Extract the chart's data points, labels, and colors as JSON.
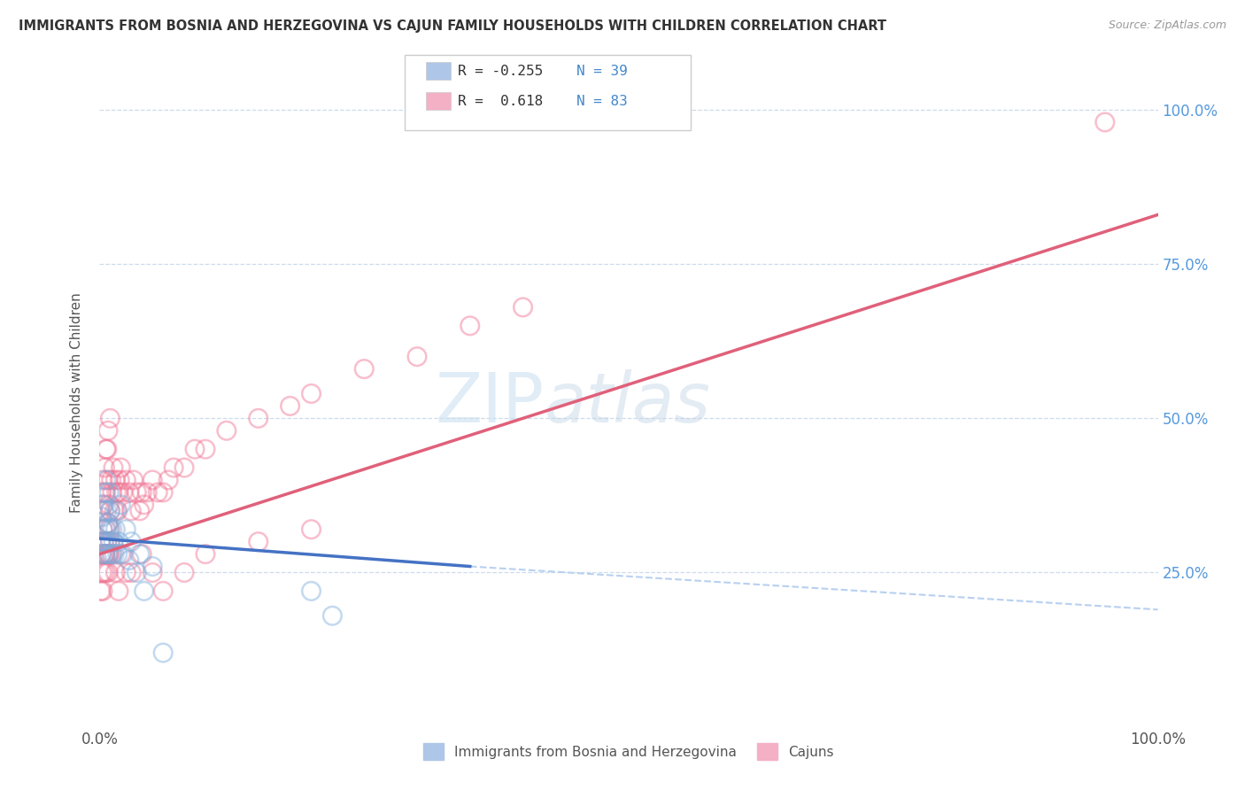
{
  "title": "IMMIGRANTS FROM BOSNIA AND HERZEGOVINA VS CAJUN FAMILY HOUSEHOLDS WITH CHILDREN CORRELATION CHART",
  "source": "Source: ZipAtlas.com",
  "ylabel": "Family Households with Children",
  "bosnia_color": "#7aacdc",
  "cajun_color": "#f07090",
  "bosnia_line_color": "#4472c4",
  "cajun_line_color": "#e0607a",
  "dashed_line_color": "#b8d0f0",
  "dashed_cajun_line_color": "#f0b8c8",
  "background_color": "#ffffff",
  "watermark_zip": "ZIP",
  "watermark_atlas": "atlas",
  "x_min": 0.0,
  "x_max": 1.0,
  "y_min": 0.0,
  "y_max": 1.05,
  "legend_entries": [
    {
      "label_r": "R = -0.255",
      "label_n": "N = 39",
      "color": "#aec6e8"
    },
    {
      "label_r": "R =  0.618",
      "label_n": "N = 83",
      "color": "#f4b0c4"
    }
  ],
  "bottom_legend": [
    {
      "label": "Immigrants from Bosnia and Herzegovina",
      "color": "#aec6e8"
    },
    {
      "label": "Cajuns",
      "color": "#f4b0c4"
    }
  ],
  "bosnia_scatter_x": [
    0.001,
    0.002,
    0.002,
    0.003,
    0.003,
    0.004,
    0.004,
    0.005,
    0.005,
    0.006,
    0.006,
    0.007,
    0.007,
    0.008,
    0.008,
    0.009,
    0.009,
    0.01,
    0.01,
    0.011,
    0.012,
    0.013,
    0.014,
    0.015,
    0.016,
    0.017,
    0.018,
    0.02,
    0.022,
    0.025,
    0.028,
    0.03,
    0.035,
    0.038,
    0.042,
    0.05,
    0.06,
    0.2,
    0.22
  ],
  "bosnia_scatter_y": [
    0.3,
    0.34,
    0.28,
    0.36,
    0.32,
    0.35,
    0.3,
    0.38,
    0.28,
    0.32,
    0.4,
    0.3,
    0.35,
    0.33,
    0.28,
    0.32,
    0.38,
    0.3,
    0.35,
    0.28,
    0.32,
    0.3,
    0.28,
    0.32,
    0.35,
    0.28,
    0.3,
    0.36,
    0.28,
    0.32,
    0.27,
    0.3,
    0.25,
    0.28,
    0.22,
    0.26,
    0.12,
    0.22,
    0.18
  ],
  "cajun_scatter_x": [
    0.001,
    0.001,
    0.002,
    0.002,
    0.003,
    0.003,
    0.004,
    0.004,
    0.005,
    0.005,
    0.006,
    0.006,
    0.007,
    0.007,
    0.008,
    0.008,
    0.009,
    0.009,
    0.01,
    0.01,
    0.011,
    0.012,
    0.013,
    0.014,
    0.015,
    0.016,
    0.017,
    0.018,
    0.019,
    0.02,
    0.022,
    0.025,
    0.028,
    0.03,
    0.032,
    0.035,
    0.038,
    0.04,
    0.042,
    0.045,
    0.05,
    0.055,
    0.06,
    0.065,
    0.07,
    0.08,
    0.09,
    0.1,
    0.12,
    0.15,
    0.18,
    0.2,
    0.25,
    0.3,
    0.35,
    0.4,
    0.001,
    0.002,
    0.003,
    0.004,
    0.005,
    0.006,
    0.007,
    0.008,
    0.009,
    0.01,
    0.012,
    0.015,
    0.018,
    0.02,
    0.025,
    0.03,
    0.04,
    0.05,
    0.06,
    0.08,
    0.1,
    0.15,
    0.2,
    0.006,
    0.008,
    0.01,
    0.95
  ],
  "cajun_scatter_y": [
    0.3,
    0.35,
    0.28,
    0.38,
    0.32,
    0.4,
    0.3,
    0.36,
    0.42,
    0.28,
    0.38,
    0.32,
    0.45,
    0.3,
    0.4,
    0.33,
    0.36,
    0.28,
    0.35,
    0.32,
    0.4,
    0.38,
    0.42,
    0.35,
    0.4,
    0.38,
    0.35,
    0.38,
    0.4,
    0.42,
    0.38,
    0.4,
    0.38,
    0.35,
    0.4,
    0.38,
    0.35,
    0.38,
    0.36,
    0.38,
    0.4,
    0.38,
    0.38,
    0.4,
    0.42,
    0.42,
    0.45,
    0.45,
    0.48,
    0.5,
    0.52,
    0.54,
    0.58,
    0.6,
    0.65,
    0.68,
    0.22,
    0.25,
    0.22,
    0.25,
    0.28,
    0.25,
    0.28,
    0.25,
    0.28,
    0.3,
    0.28,
    0.25,
    0.22,
    0.28,
    0.25,
    0.25,
    0.28,
    0.25,
    0.22,
    0.25,
    0.28,
    0.3,
    0.32,
    0.45,
    0.48,
    0.5,
    0.98
  ]
}
